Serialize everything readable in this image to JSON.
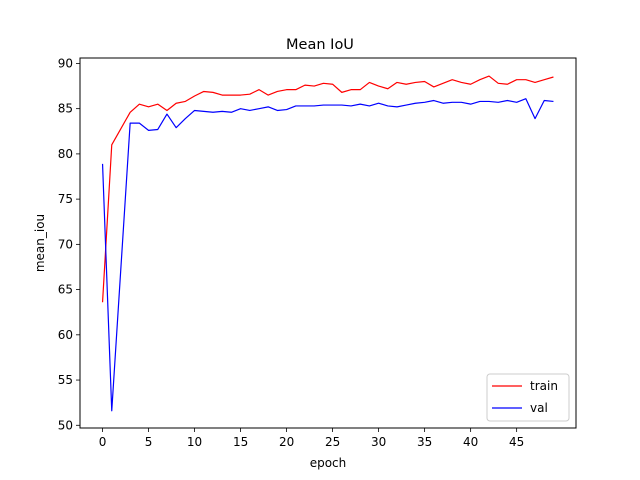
{
  "chart_data": {
    "type": "line",
    "title": "Mean IoU",
    "xlabel": "epoch",
    "ylabel": "mean_iou",
    "xlim": [
      -2.45,
      51.45
    ],
    "ylim": [
      49.7,
      90.6
    ],
    "xticks": [
      0,
      5,
      10,
      15,
      20,
      25,
      30,
      35,
      40,
      45
    ],
    "yticks": [
      50,
      55,
      60,
      65,
      70,
      75,
      80,
      85,
      90
    ],
    "grid": false,
    "legend_position": "lower-right",
    "series": [
      {
        "name": "train",
        "color": "#ff0000",
        "x": [
          0,
          1,
          2,
          3,
          4,
          5,
          6,
          7,
          8,
          9,
          10,
          11,
          12,
          13,
          14,
          15,
          16,
          17,
          18,
          19,
          20,
          21,
          22,
          23,
          24,
          25,
          26,
          27,
          28,
          29,
          30,
          31,
          32,
          33,
          34,
          35,
          36,
          37,
          38,
          39,
          40,
          41,
          42,
          43,
          44,
          45,
          46,
          47,
          48,
          49
        ],
        "values": [
          63.6,
          81.0,
          82.8,
          84.6,
          85.5,
          85.2,
          85.5,
          84.8,
          85.6,
          85.8,
          86.4,
          86.9,
          86.8,
          86.5,
          86.5,
          86.5,
          86.6,
          87.1,
          86.5,
          86.9,
          87.1,
          87.1,
          87.6,
          87.5,
          87.8,
          87.7,
          86.8,
          87.1,
          87.1,
          87.9,
          87.5,
          87.2,
          87.9,
          87.7,
          87.9,
          88.0,
          87.4,
          87.8,
          88.2,
          87.9,
          87.7,
          88.2,
          88.6,
          87.8,
          87.7,
          88.2,
          88.2,
          87.9,
          88.2,
          88.5
        ]
      },
      {
        "name": "val",
        "color": "#0000ff",
        "x": [
          0,
          1,
          2,
          3,
          4,
          5,
          6,
          7,
          8,
          9,
          10,
          11,
          12,
          13,
          14,
          15,
          16,
          17,
          18,
          19,
          20,
          21,
          22,
          23,
          24,
          25,
          26,
          27,
          28,
          29,
          30,
          31,
          32,
          33,
          34,
          35,
          36,
          37,
          38,
          39,
          40,
          41,
          42,
          43,
          44,
          45,
          46,
          47,
          48,
          49
        ],
        "values": [
          78.9,
          51.6,
          67.5,
          83.4,
          83.4,
          82.6,
          82.7,
          84.4,
          82.9,
          83.9,
          84.8,
          84.7,
          84.6,
          84.7,
          84.6,
          85.0,
          84.8,
          85.0,
          85.2,
          84.8,
          84.9,
          85.3,
          85.3,
          85.3,
          85.4,
          85.4,
          85.4,
          85.3,
          85.5,
          85.3,
          85.6,
          85.3,
          85.2,
          85.4,
          85.6,
          85.7,
          85.9,
          85.6,
          85.7,
          85.7,
          85.5,
          85.8,
          85.8,
          85.7,
          85.9,
          85.7,
          86.1,
          83.9,
          85.9,
          85.8
        ]
      }
    ]
  }
}
